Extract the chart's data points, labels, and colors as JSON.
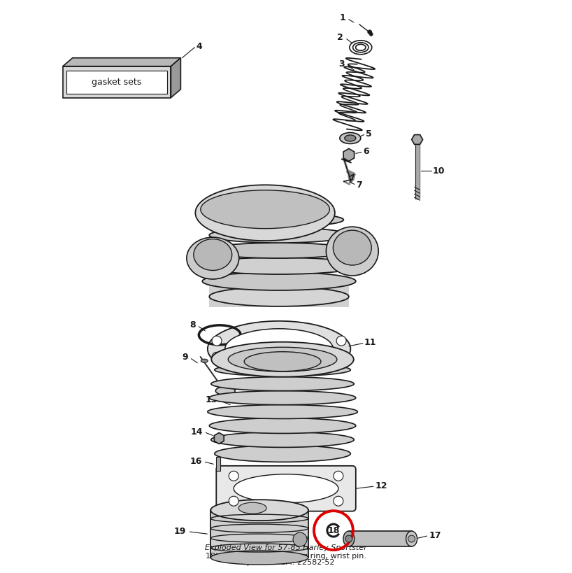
{
  "bg_color": "#ffffff",
  "lc": "#1a1a1a",
  "red": "#dd0000",
  "gray1": "#c8c8c8",
  "gray2": "#aaaaaa",
  "gray3": "#888888",
  "gray4": "#666666",
  "lgray": "#e0e0e0",
  "subtitle1": "Exploded View for 57-85 Harley Sportster",
  "subtitle2": "18) 52-77 K, XL. Retaining ring, wrist pin.",
  "subtitle3": "Replaces OEM: 22582-52",
  "fig_w": 8.0,
  "fig_h": 8.0,
  "dpi": 100
}
